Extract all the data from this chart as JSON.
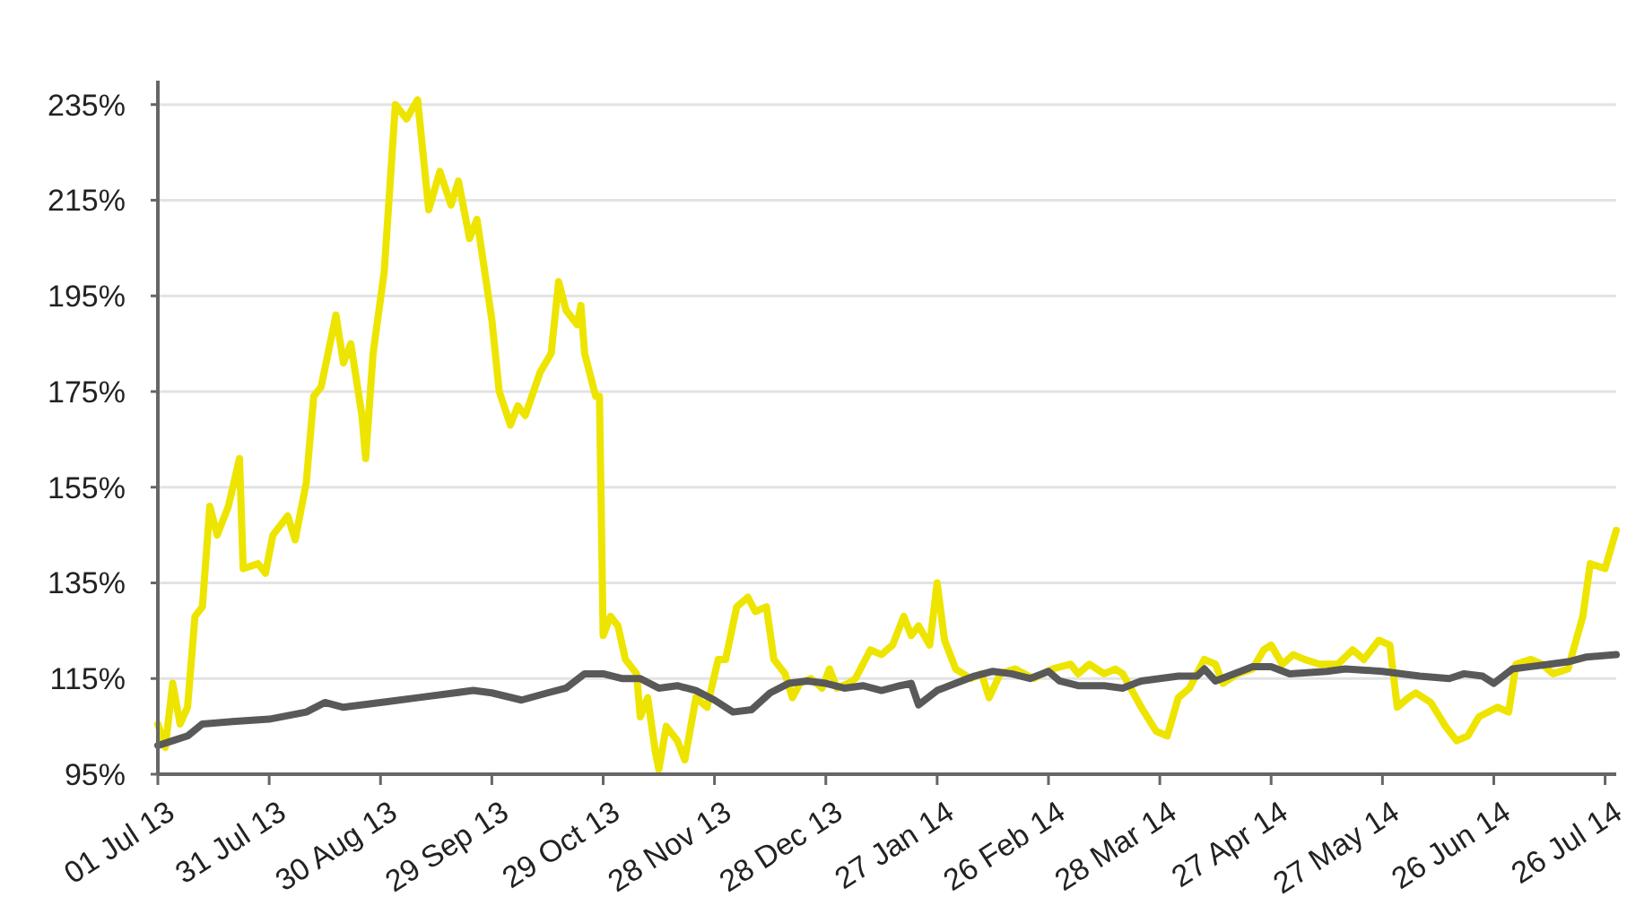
{
  "chart_data": {
    "type": "line",
    "grid": "y",
    "line_style": "solid",
    "marker": "none",
    "xlim": [
      "2013-07-01",
      "2014-07-29"
    ],
    "xticks": [
      {
        "value": "2013-07-01",
        "label": "01 Jul 13"
      },
      {
        "value": "2013-07-31",
        "label": "31 Jul 13"
      },
      {
        "value": "2013-08-30",
        "label": "30 Aug 13"
      },
      {
        "value": "2013-09-29",
        "label": "29 Sep 13"
      },
      {
        "value": "2013-10-29",
        "label": "29 Oct 13"
      },
      {
        "value": "2013-11-28",
        "label": "28 Nov 13"
      },
      {
        "value": "2013-12-28",
        "label": "28 Dec 13"
      },
      {
        "value": "2014-01-27",
        "label": "27 Jan 14"
      },
      {
        "value": "2014-02-26",
        "label": "26 Feb 14"
      },
      {
        "value": "2014-03-28",
        "label": "28 Mar 14"
      },
      {
        "value": "2014-04-27",
        "label": "27 Apr 14"
      },
      {
        "value": "2014-05-27",
        "label": "27 May 14"
      },
      {
        "value": "2014-06-26",
        "label": "26 Jun 14"
      },
      {
        "value": "2014-07-26",
        "label": "26 Jul 14"
      }
    ],
    "ylim": [
      95,
      240
    ],
    "yticks": [
      {
        "value": 95,
        "label": "95%"
      },
      {
        "value": 115,
        "label": "115%"
      },
      {
        "value": 135,
        "label": "135%"
      },
      {
        "value": 155,
        "label": "155%"
      },
      {
        "value": 175,
        "label": "175%"
      },
      {
        "value": 195,
        "label": "195%"
      },
      {
        "value": 215,
        "label": "215%"
      },
      {
        "value": 235,
        "label": "235%"
      }
    ],
    "series": [
      {
        "color": "#ede500",
        "x": [
          "2013-07-01",
          "2013-07-03",
          "2013-07-05",
          "2013-07-07",
          "2013-07-09",
          "2013-07-11",
          "2013-07-13",
          "2013-07-15",
          "2013-07-17",
          "2013-07-20",
          "2013-07-23",
          "2013-07-24",
          "2013-07-28",
          "2013-07-30",
          "2013-08-01",
          "2013-08-05",
          "2013-08-07",
          "2013-08-10",
          "2013-08-12",
          "2013-08-14",
          "2013-08-18",
          "2013-08-20",
          "2013-08-22",
          "2013-08-25",
          "2013-08-26",
          "2013-08-28",
          "2013-08-31",
          "2013-09-03",
          "2013-09-06",
          "2013-09-09",
          "2013-09-12",
          "2013-09-15",
          "2013-09-18",
          "2013-09-20",
          "2013-09-23",
          "2013-09-25",
          "2013-09-29",
          "2013-10-01",
          "2013-10-04",
          "2013-10-06",
          "2013-10-08",
          "2013-10-12",
          "2013-10-15",
          "2013-10-17",
          "2013-10-19",
          "2013-10-22",
          "2013-10-23",
          "2013-10-24",
          "2013-10-27",
          "2013-10-28",
          "2013-10-29",
          "2013-10-31",
          "2013-11-02",
          "2013-11-04",
          "2013-11-07",
          "2013-11-08",
          "2013-11-10",
          "2013-11-12",
          "2013-11-13",
          "2013-11-15",
          "2013-11-18",
          "2013-11-20",
          "2013-11-23",
          "2013-11-26",
          "2013-11-29",
          "2013-12-01",
          "2013-12-04",
          "2013-12-07",
          "2013-12-09",
          "2013-12-12",
          "2013-12-14",
          "2013-12-17",
          "2013-12-19",
          "2013-12-21",
          "2013-12-24",
          "2013-12-27",
          "2013-12-29",
          "2013-12-31",
          "2014-01-03",
          "2014-01-05",
          "2014-01-09",
          "2014-01-12",
          "2014-01-15",
          "2014-01-18",
          "2014-01-20",
          "2014-01-22",
          "2014-01-25",
          "2014-01-27",
          "2014-01-29",
          "2014-02-01",
          "2014-02-05",
          "2014-02-08",
          "2014-02-10",
          "2014-02-13",
          "2014-02-17",
          "2014-02-22",
          "2014-02-27",
          "2014-03-04",
          "2014-03-06",
          "2014-03-09",
          "2014-03-13",
          "2014-03-16",
          "2014-03-18",
          "2014-03-23",
          "2014-03-27",
          "2014-03-30",
          "2014-04-02",
          "2014-04-05",
          "2014-04-09",
          "2014-04-12",
          "2014-04-14",
          "2014-04-18",
          "2014-04-22",
          "2014-04-25",
          "2014-04-27",
          "2014-04-30",
          "2014-05-03",
          "2014-05-06",
          "2014-05-10",
          "2014-05-15",
          "2014-05-19",
          "2014-05-22",
          "2014-05-26",
          "2014-05-29",
          "2014-05-31",
          "2014-06-03",
          "2014-06-05",
          "2014-06-09",
          "2014-06-13",
          "2014-06-16",
          "2014-06-19",
          "2014-06-22",
          "2014-06-27",
          "2014-06-30",
          "2014-07-02",
          "2014-07-06",
          "2014-07-09",
          "2014-07-12",
          "2014-07-16",
          "2014-07-20",
          "2014-07-22",
          "2014-07-26",
          "2014-07-29"
        ],
        "values": [
          105.5,
          100.6,
          114,
          105.5,
          109,
          128,
          130,
          151,
          145,
          151,
          161,
          138,
          139,
          137,
          145,
          149,
          144,
          156,
          174,
          176,
          191,
          181,
          185,
          170,
          161,
          183,
          200,
          235,
          232,
          236,
          213,
          221,
          214,
          219,
          207,
          211,
          190,
          175,
          168,
          172,
          170,
          179,
          183,
          198,
          192,
          189,
          193,
          183,
          174,
          174,
          124,
          128,
          126,
          119,
          116,
          107,
          111,
          100,
          96,
          105,
          102,
          98,
          111,
          109,
          119,
          119,
          130,
          132,
          129,
          130,
          119,
          116,
          111,
          114,
          115,
          113,
          117,
          113,
          114,
          115,
          121,
          120,
          122,
          128,
          124,
          126,
          122,
          135,
          123,
          117,
          115,
          116,
          111,
          116,
          117,
          115,
          117,
          118,
          116,
          118,
          116,
          117,
          116,
          109,
          104,
          103,
          111,
          113,
          119,
          118,
          114,
          116,
          117,
          121,
          122,
          118,
          120,
          119,
          118,
          118,
          121,
          119,
          123,
          122,
          109,
          111,
          112,
          110,
          105,
          102,
          103,
          107,
          109,
          108,
          118,
          119,
          118,
          116,
          117,
          128,
          139,
          138,
          146
        ]
      },
      {
        "color": "#595959",
        "x": [
          "2013-07-01",
          "2013-07-05",
          "2013-07-09",
          "2013-07-13",
          "2013-07-21",
          "2013-07-31",
          "2013-08-10",
          "2013-08-15",
          "2013-08-20",
          "2013-08-30",
          "2013-09-09",
          "2013-09-19",
          "2013-09-24",
          "2013-09-29",
          "2013-10-07",
          "2013-10-14",
          "2013-10-19",
          "2013-10-24",
          "2013-10-29",
          "2013-11-03",
          "2013-11-08",
          "2013-11-13",
          "2013-11-18",
          "2013-11-23",
          "2013-11-28",
          "2013-12-03",
          "2013-12-08",
          "2013-12-13",
          "2013-12-18",
          "2013-12-23",
          "2013-12-28",
          "2014-01-02",
          "2014-01-07",
          "2014-01-12",
          "2014-01-17",
          "2014-01-20",
          "2014-01-22",
          "2014-01-27",
          "2014-02-01",
          "2014-02-06",
          "2014-02-11",
          "2014-02-16",
          "2014-02-21",
          "2014-02-26",
          "2014-03-01",
          "2014-03-06",
          "2014-03-13",
          "2014-03-18",
          "2014-03-23",
          "2014-03-28",
          "2014-04-02",
          "2014-04-07",
          "2014-04-09",
          "2014-04-12",
          "2014-04-17",
          "2014-04-22",
          "2014-04-27",
          "2014-05-02",
          "2014-05-12",
          "2014-05-17",
          "2014-05-27",
          "2014-06-06",
          "2014-06-14",
          "2014-06-18",
          "2014-06-23",
          "2014-06-26",
          "2014-07-01",
          "2014-07-06",
          "2014-07-11",
          "2014-07-16",
          "2014-07-21",
          "2014-07-29"
        ],
        "values": [
          101,
          102,
          103,
          105.5,
          106,
          106.5,
          108,
          110,
          109,
          110,
          111,
          112,
          112.5,
          112,
          110.5,
          112,
          113,
          116,
          116,
          115,
          115,
          113,
          113.5,
          112.5,
          110.5,
          108,
          108.5,
          112,
          114,
          114.5,
          114,
          113,
          113.5,
          112.5,
          113.5,
          114,
          109.5,
          112.5,
          114,
          115.5,
          116.5,
          116,
          115,
          116.5,
          114.5,
          113.5,
          113.5,
          113,
          114.5,
          115,
          115.5,
          115.5,
          117,
          114.5,
          116,
          117.5,
          117.5,
          116,
          116.5,
          117,
          116.5,
          115.5,
          115,
          116,
          115.5,
          114,
          117,
          117.5,
          118,
          118.5,
          119.5,
          120
        ]
      }
    ]
  }
}
